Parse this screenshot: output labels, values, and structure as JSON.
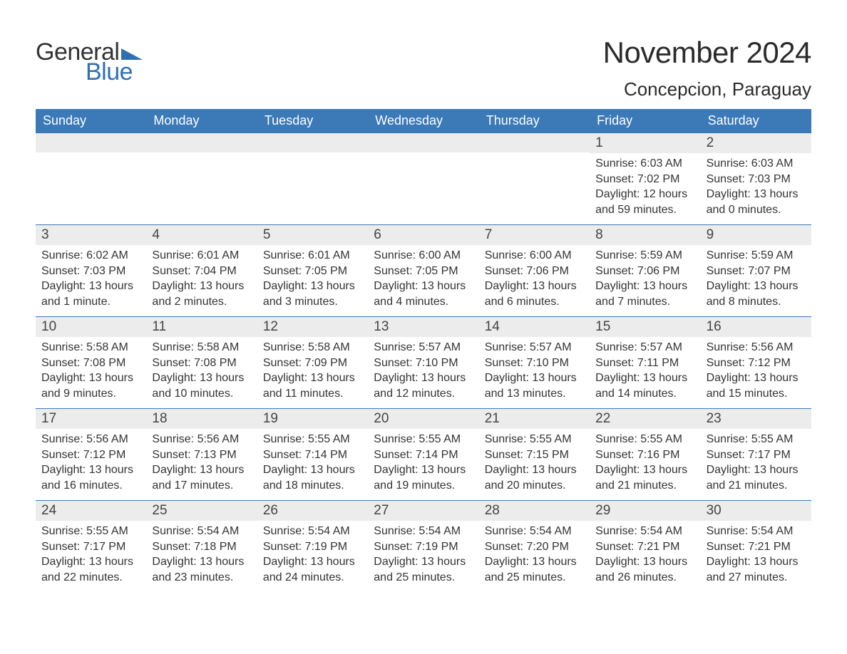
{
  "logo": {
    "word1": "General",
    "word2": "Blue"
  },
  "title": "November 2024",
  "location": "Concepcion, Paraguay",
  "colors": {
    "header_bg": "#3b79b7",
    "header_text": "#ffffff",
    "band_bg": "#ececec",
    "rule": "#3b79b7",
    "logo_blue": "#2f6fb2",
    "body_text": "#333333",
    "background": "#ffffff"
  },
  "typography": {
    "title_fontsize": 42,
    "location_fontsize": 26,
    "dow_fontsize": 18,
    "daynum_fontsize": 19,
    "body_fontsize": 16,
    "font_family": "Arial"
  },
  "days_of_week": [
    "Sunday",
    "Monday",
    "Tuesday",
    "Wednesday",
    "Thursday",
    "Friday",
    "Saturday"
  ],
  "weeks": [
    [
      null,
      null,
      null,
      null,
      null,
      {
        "num": "1",
        "sunrise": "Sunrise: 6:03 AM",
        "sunset": "Sunset: 7:02 PM",
        "daylight": "Daylight: 12 hours and 59 minutes."
      },
      {
        "num": "2",
        "sunrise": "Sunrise: 6:03 AM",
        "sunset": "Sunset: 7:03 PM",
        "daylight": "Daylight: 13 hours and 0 minutes."
      }
    ],
    [
      {
        "num": "3",
        "sunrise": "Sunrise: 6:02 AM",
        "sunset": "Sunset: 7:03 PM",
        "daylight": "Daylight: 13 hours and 1 minute."
      },
      {
        "num": "4",
        "sunrise": "Sunrise: 6:01 AM",
        "sunset": "Sunset: 7:04 PM",
        "daylight": "Daylight: 13 hours and 2 minutes."
      },
      {
        "num": "5",
        "sunrise": "Sunrise: 6:01 AM",
        "sunset": "Sunset: 7:05 PM",
        "daylight": "Daylight: 13 hours and 3 minutes."
      },
      {
        "num": "6",
        "sunrise": "Sunrise: 6:00 AM",
        "sunset": "Sunset: 7:05 PM",
        "daylight": "Daylight: 13 hours and 4 minutes."
      },
      {
        "num": "7",
        "sunrise": "Sunrise: 6:00 AM",
        "sunset": "Sunset: 7:06 PM",
        "daylight": "Daylight: 13 hours and 6 minutes."
      },
      {
        "num": "8",
        "sunrise": "Sunrise: 5:59 AM",
        "sunset": "Sunset: 7:06 PM",
        "daylight": "Daylight: 13 hours and 7 minutes."
      },
      {
        "num": "9",
        "sunrise": "Sunrise: 5:59 AM",
        "sunset": "Sunset: 7:07 PM",
        "daylight": "Daylight: 13 hours and 8 minutes."
      }
    ],
    [
      {
        "num": "10",
        "sunrise": "Sunrise: 5:58 AM",
        "sunset": "Sunset: 7:08 PM",
        "daylight": "Daylight: 13 hours and 9 minutes."
      },
      {
        "num": "11",
        "sunrise": "Sunrise: 5:58 AM",
        "sunset": "Sunset: 7:08 PM",
        "daylight": "Daylight: 13 hours and 10 minutes."
      },
      {
        "num": "12",
        "sunrise": "Sunrise: 5:58 AM",
        "sunset": "Sunset: 7:09 PM",
        "daylight": "Daylight: 13 hours and 11 minutes."
      },
      {
        "num": "13",
        "sunrise": "Sunrise: 5:57 AM",
        "sunset": "Sunset: 7:10 PM",
        "daylight": "Daylight: 13 hours and 12 minutes."
      },
      {
        "num": "14",
        "sunrise": "Sunrise: 5:57 AM",
        "sunset": "Sunset: 7:10 PM",
        "daylight": "Daylight: 13 hours and 13 minutes."
      },
      {
        "num": "15",
        "sunrise": "Sunrise: 5:57 AM",
        "sunset": "Sunset: 7:11 PM",
        "daylight": "Daylight: 13 hours and 14 minutes."
      },
      {
        "num": "16",
        "sunrise": "Sunrise: 5:56 AM",
        "sunset": "Sunset: 7:12 PM",
        "daylight": "Daylight: 13 hours and 15 minutes."
      }
    ],
    [
      {
        "num": "17",
        "sunrise": "Sunrise: 5:56 AM",
        "sunset": "Sunset: 7:12 PM",
        "daylight": "Daylight: 13 hours and 16 minutes."
      },
      {
        "num": "18",
        "sunrise": "Sunrise: 5:56 AM",
        "sunset": "Sunset: 7:13 PM",
        "daylight": "Daylight: 13 hours and 17 minutes."
      },
      {
        "num": "19",
        "sunrise": "Sunrise: 5:55 AM",
        "sunset": "Sunset: 7:14 PM",
        "daylight": "Daylight: 13 hours and 18 minutes."
      },
      {
        "num": "20",
        "sunrise": "Sunrise: 5:55 AM",
        "sunset": "Sunset: 7:14 PM",
        "daylight": "Daylight: 13 hours and 19 minutes."
      },
      {
        "num": "21",
        "sunrise": "Sunrise: 5:55 AM",
        "sunset": "Sunset: 7:15 PM",
        "daylight": "Daylight: 13 hours and 20 minutes."
      },
      {
        "num": "22",
        "sunrise": "Sunrise: 5:55 AM",
        "sunset": "Sunset: 7:16 PM",
        "daylight": "Daylight: 13 hours and 21 minutes."
      },
      {
        "num": "23",
        "sunrise": "Sunrise: 5:55 AM",
        "sunset": "Sunset: 7:17 PM",
        "daylight": "Daylight: 13 hours and 21 minutes."
      }
    ],
    [
      {
        "num": "24",
        "sunrise": "Sunrise: 5:55 AM",
        "sunset": "Sunset: 7:17 PM",
        "daylight": "Daylight: 13 hours and 22 minutes."
      },
      {
        "num": "25",
        "sunrise": "Sunrise: 5:54 AM",
        "sunset": "Sunset: 7:18 PM",
        "daylight": "Daylight: 13 hours and 23 minutes."
      },
      {
        "num": "26",
        "sunrise": "Sunrise: 5:54 AM",
        "sunset": "Sunset: 7:19 PM",
        "daylight": "Daylight: 13 hours and 24 minutes."
      },
      {
        "num": "27",
        "sunrise": "Sunrise: 5:54 AM",
        "sunset": "Sunset: 7:19 PM",
        "daylight": "Daylight: 13 hours and 25 minutes."
      },
      {
        "num": "28",
        "sunrise": "Sunrise: 5:54 AM",
        "sunset": "Sunset: 7:20 PM",
        "daylight": "Daylight: 13 hours and 25 minutes."
      },
      {
        "num": "29",
        "sunrise": "Sunrise: 5:54 AM",
        "sunset": "Sunset: 7:21 PM",
        "daylight": "Daylight: 13 hours and 26 minutes."
      },
      {
        "num": "30",
        "sunrise": "Sunrise: 5:54 AM",
        "sunset": "Sunset: 7:21 PM",
        "daylight": "Daylight: 13 hours and 27 minutes."
      }
    ]
  ]
}
